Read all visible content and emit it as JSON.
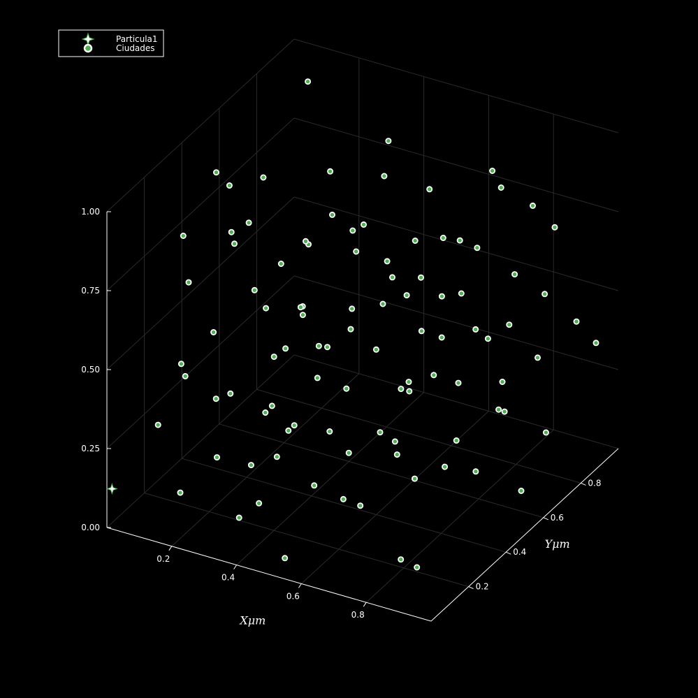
{
  "chart_data": {
    "type": "scatter",
    "subtype": "3d-scatter",
    "title": "",
    "xlabel": "Xμm",
    "ylabel": "Yμm",
    "zlabel": "",
    "xlim": [
      0,
      1
    ],
    "ylim": [
      0,
      1
    ],
    "zlim": [
      0,
      1
    ],
    "xticks": [
      "0.2",
      "0.4",
      "0.6",
      "0.8"
    ],
    "yticks": [
      "0.2",
      "0.4",
      "0.6",
      "0.8"
    ],
    "zticks": [
      "0.00",
      "0.25",
      "0.50",
      "0.75",
      "1.00"
    ],
    "grid": true,
    "legend_position": "top-left",
    "background": "#000000",
    "series": [
      {
        "name": "Particula1",
        "marker": "star",
        "color": "#ffffff",
        "points": [
          [
            0.01,
            0.01,
            0.12
          ]
        ]
      },
      {
        "name": "Ciudades",
        "marker": "circle",
        "color": "#4caf50",
        "edgecolor": "#ffffff",
        "points": [
          [
            0.18,
            0.08,
            0.12
          ],
          [
            0.35,
            0.1,
            0.08
          ],
          [
            0.52,
            0.05,
            0.03
          ],
          [
            0.82,
            0.15,
            0.06
          ],
          [
            0.91,
            0.08,
            0.1
          ],
          [
            0.66,
            0.12,
            0.22
          ],
          [
            0.4,
            0.2,
            0.55
          ],
          [
            0.22,
            0.3,
            0.8
          ],
          [
            0.3,
            0.45,
            0.15
          ],
          [
            0.45,
            0.5,
            0.3
          ],
          [
            0.55,
            0.35,
            0.6
          ],
          [
            0.7,
            0.4,
            0.45
          ],
          [
            0.88,
            0.6,
            0.3
          ],
          [
            0.95,
            0.7,
            0.2
          ],
          [
            0.12,
            0.55,
            0.7
          ],
          [
            0.2,
            0.7,
            0.35
          ],
          [
            0.33,
            0.8,
            0.62
          ],
          [
            0.48,
            0.65,
            0.9
          ],
          [
            0.6,
            0.75,
            0.5
          ],
          [
            0.75,
            0.85,
            0.4
          ],
          [
            0.85,
            0.92,
            0.7
          ],
          [
            0.1,
            0.9,
            0.95
          ],
          [
            0.25,
            0.15,
            0.4
          ],
          [
            0.38,
            0.25,
            0.2
          ],
          [
            0.5,
            0.18,
            0.75
          ],
          [
            0.62,
            0.28,
            0.1
          ],
          [
            0.78,
            0.22,
            0.55
          ],
          [
            0.92,
            0.3,
            0.85
          ],
          [
            0.15,
            0.4,
            0.25
          ],
          [
            0.28,
            0.55,
            0.48
          ],
          [
            0.42,
            0.38,
            0.05
          ],
          [
            0.58,
            0.52,
            0.68
          ],
          [
            0.72,
            0.62,
            0.15
          ],
          [
            0.86,
            0.48,
            0.62
          ],
          [
            0.05,
            0.35,
            0.6
          ],
          [
            0.08,
            0.65,
            0.42
          ],
          [
            0.18,
            0.82,
            0.18
          ],
          [
            0.32,
            0.92,
            0.3
          ],
          [
            0.46,
            0.85,
            0.58
          ],
          [
            0.64,
            0.95,
            0.8
          ],
          [
            0.8,
            0.72,
            0.92
          ],
          [
            0.94,
            0.88,
            0.45
          ],
          [
            0.12,
            0.2,
            0.85
          ],
          [
            0.24,
            0.42,
            0.95
          ],
          [
            0.36,
            0.58,
            0.78
          ],
          [
            0.54,
            0.68,
            0.22
          ],
          [
            0.68,
            0.8,
            0.65
          ],
          [
            0.82,
            0.55,
            0.12
          ],
          [
            0.96,
            0.45,
            0.5
          ],
          [
            0.04,
            0.78,
            0.28
          ],
          [
            0.16,
            0.12,
            0.5
          ],
          [
            0.26,
            0.32,
            0.1
          ],
          [
            0.44,
            0.12,
            0.45
          ],
          [
            0.56,
            0.22,
            0.35
          ],
          [
            0.7,
            0.08,
            0.4
          ],
          [
            0.84,
            0.35,
            0.25
          ],
          [
            0.98,
            0.18,
            0.65
          ],
          [
            0.06,
            0.48,
            0.88
          ],
          [
            0.22,
            0.62,
            0.05
          ],
          [
            0.34,
            0.72,
            0.4
          ],
          [
            0.5,
            0.88,
            0.15
          ],
          [
            0.66,
            0.58,
            0.95
          ],
          [
            0.78,
            0.95,
            0.25
          ],
          [
            0.9,
            0.78,
            0.58
          ],
          [
            0.14,
            0.95,
            0.65
          ],
          [
            0.3,
            0.05,
            0.68
          ],
          [
            0.46,
            0.28,
            0.88
          ],
          [
            0.6,
            0.42,
            0.25
          ],
          [
            0.74,
            0.32,
            0.78
          ],
          [
            0.88,
            0.12,
            0.35
          ],
          [
            0.08,
            0.28,
            0.35
          ],
          [
            0.2,
            0.5,
            0.15
          ],
          [
            0.4,
            0.62,
            0.72
          ],
          [
            0.52,
            0.78,
            0.35
          ],
          [
            0.64,
            0.68,
            0.42
          ],
          [
            0.76,
            0.48,
            0.88
          ],
          [
            0.92,
            0.62,
            0.05
          ],
          [
            0.02,
            0.62,
            0.75
          ],
          [
            0.18,
            0.75,
            0.55
          ],
          [
            0.36,
            0.88,
            0.85
          ],
          [
            0.54,
            0.95,
            0.55
          ],
          [
            0.7,
            0.88,
            0.1
          ],
          [
            0.84,
            0.82,
            0.82
          ],
          [
            0.96,
            0.95,
            0.35
          ],
          [
            0.1,
            0.1,
            0.3
          ],
          [
            0.28,
            0.18,
            0.92
          ],
          [
            0.44,
            0.05,
            0.18
          ],
          [
            0.58,
            0.12,
            0.58
          ],
          [
            0.72,
            0.25,
            0.92
          ],
          [
            0.86,
            0.05,
            0.5
          ],
          [
            0.12,
            0.38,
            0.05
          ],
          [
            0.26,
            0.48,
            0.65
          ],
          [
            0.42,
            0.45,
            0.45
          ],
          [
            0.56,
            0.58,
            0.08
          ],
          [
            0.68,
            0.5,
            0.72
          ],
          [
            0.8,
            0.65,
            0.48
          ],
          [
            0.94,
            0.55,
            0.78
          ],
          [
            0.06,
            0.85,
            0.12
          ],
          [
            0.22,
            0.95,
            0.42
          ],
          [
            0.38,
            0.78,
            0.25
          ]
        ]
      }
    ]
  }
}
